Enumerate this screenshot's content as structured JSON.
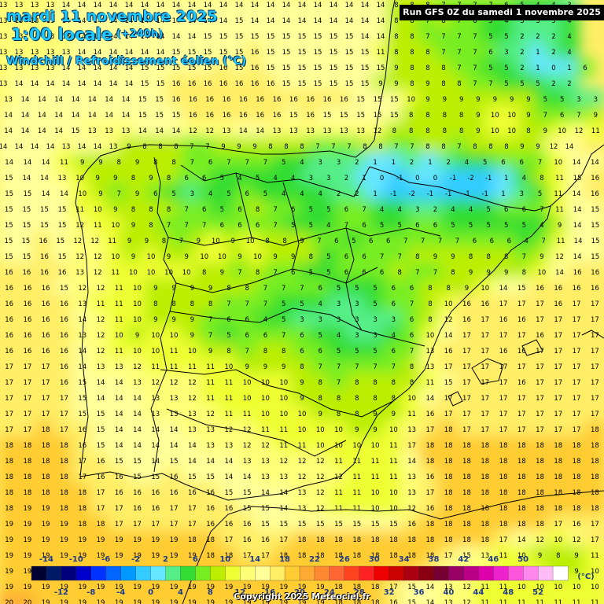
{
  "header": {
    "date_line": "mardi 11 novembre 2025",
    "time_line": "1:00 locale",
    "lead": "(+240h)",
    "param": "Windchill / Refroidissement éolien (°C)",
    "run": "Run GFS 0Z du samedi 1 novembre 2025"
  },
  "copyright": "Copyright 2025 Meteociel.fr",
  "legend": {
    "unit": "(°C)",
    "top_labels": [
      "-14",
      "-10",
      "-6",
      "-2",
      "2",
      "6",
      "10",
      "14",
      "18",
      "22",
      "26",
      "30",
      "34",
      "38",
      "42",
      "46",
      "50"
    ],
    "bottom_labels": [
      "-12",
      "-8",
      "-4",
      "0",
      "4",
      "8",
      "12",
      "16",
      "20",
      "24",
      "28",
      "32",
      "36",
      "40",
      "44",
      "48",
      "52"
    ],
    "colors": [
      "#000033",
      "#001a66",
      "#00007a",
      "#0000cc",
      "#0033ff",
      "#0066ff",
      "#0099ff",
      "#33ccff",
      "#66e6ff",
      "#55ee88",
      "#33dd33",
      "#77ee22",
      "#bbee00",
      "#eeff33",
      "#ffff77",
      "#ffff99",
      "#ffee66",
      "#ffcc33",
      "#ffaa33",
      "#ff8833",
      "#ff6633",
      "#ff4422",
      "#ff2222",
      "#ee0000",
      "#cc0000",
      "#aa0011",
      "#880011",
      "#770033",
      "#990066",
      "#bb0088",
      "#dd00aa",
      "#ee22cc",
      "#ff55dd",
      "#ff88ee",
      "#ffbbf5",
      "#ffffff"
    ]
  },
  "map_rows": [
    "13 13 13 13 14 14 14 14 14 14 14 14 14 14 14 14 14 14 14 14 14 14 14 14 14 8 8 8 7 7 7 7 6 5 4 4 3",
    "13 13 13 13 14 14 14 14 14 14 14 14 14 14 14 15 14 14 14 14 14 14 14 14 14 8 8 7 8 7 6 5 4 3 3 3 4",
    "13 13 13 13 13 14 14 14 14 14 14 14 14 15 15 15 15 15 15 15 15 15 15 14 14 8 8 7 7 7 7 5 5 2 2 2 4",
    "13 13 13 13 13 14 14 14 14 14 14 15 15 15 15 15 16 15 15 15 15 15 15 15 11 8 8 8 7 7 7 6 3 2 1 2 4",
    "13 13 13 13 14 14 14 14 14 15 15 15 15 15 16 15 16 15 15 15 15 15 15 15 15 9 8 8 8 7 7 5 5 2 1 0 1 6",
    "13 14 14 14 14 14 14 14 14 15 15 16 16 16 16 16 16 16 15 15 15 15 15 15 9 9 8 9 8 8 7 7 5 5 5 2 2",
    "13 14 14 14 14 14 14 14 15 15 16 16 16 16 16 16 16 16 16 16 16 15 15 15 10 9 9 9 9 9 9 9 5 5 3 3",
    "14 14 14 14 14 14 14 14 15 15 15 16 16 16 16 16 16 15 16 15 15 15 15 15 8 8 8 8 9 10 10 9 7 6 7 9",
    "14 14 14 14 15 13 13 13 14 14 14 12 12 13 14 14 13 13 13 13 13 13 12 8 8 8 8 8 9 10 10 8 9 10 12 11",
    "14 14 14 14 13 14 14 13 9 8 8 8 7 7 9 9 9 8 8 8 7 7 7 8 8 7 7 8 8 7 8 8 8 9 9 12 14",
    "14 14 14 11 9 9 8 9 8 8 7 6 7 7 7 5 4 3 3 2 1 1 2 1 2 4 5 6 6 7 10 14 14",
    "15 14 14 13 10 9 9 8 9 8 6 6 5 4 5 4 4 3 3 2 1 0 -1 0 0 -1 -2 -1 1 4 8 11 15 16",
    "15 15 14 14 10 9 7 9 6 5 3 4 5 6 5 4 4 4 2 2 1 -1 -2 -1 -1 -1 -1 1 3 5 11 14 16",
    "15 15 15 15 11 10 9 8 8 8 7 6 5 6 8 7 6 5 5 6 7 4 4 3 2 4 4 5 6 6 7 11 14 15",
    "15 15 15 15 12 11 10 9 8 7 7 7 6 6 6 7 5 5 4 7 6 5 5 6 6 5 5 5 5 5 4 9 14 15",
    "15 15 16 15 12 12 11 9 9 8 7 9 10 9 10 8 8 9 7 6 5 6 6 7 7 7 7 6 6 6 4 7 11 14 15",
    "15 15 16 15 12 12 10 9 10 9 9 10 10 9 10 9 9 8 5 6 6 7 7 8 9 9 8 8 8 7 9 12 14 15",
    "16 16 16 16 13 12 11 10 10 10 10 8 9 7 8 7 6 5 5 6 6 6 8 7 7 8 9 9 9 8 10 14 16 16",
    "16 16 16 15 12 12 11 10 9 9 9 9 8 8 7 7 7 6 5 5 5 6 6 8 8 9 10 14 15 16 16 16 16",
    "16 16 16 16 13 11 11 10 8 8 8 8 7 7 7 5 5 4 3 3 5 6 7 8 10 16 16 17 17 17 16 17 17",
    "16 16 16 16 14 12 11 10 9 9 9 7 6 6 4 5 3 3 3 3 3 3 6 8 12 16 17 16 16 17 17 17 17",
    "16 16 16 16 13 12 10 9 10 10 9 7 5 6 6 7 6 5 4 3 3 4 6 10 14 17 17 17 17 16 17 17 17",
    "16 16 16 16 14 12 11 10 10 11 10 9 8 7 8 8 6 6 5 5 5 6 7 13 16 17 17 16 16 17 17 17 17",
    "17 17 17 16 14 13 13 12 11 11 11 11 10 9 9 9 8 7 7 7 7 7 8 13 17 17 17 17 17 17 17 17 17",
    "17 17 17 16 15 14 14 13 12 12 12 11 11 10 10 10 9 8 7 8 8 8 8 11 15 17 17 17 16 17 17 17 17",
    "17 17 17 17 15 14 14 14 13 13 12 11 11 10 10 10 9 8 8 8 8 8 10 14 17 17 17 17 17 17 17 17 17",
    "17 17 17 17 15 15 14 14 13 13 13 12 11 11 10 10 10 9 8 8 9 9 11 16 17 17 17 17 17 17 17 17 17",
    "17 17 18 17 16 15 14 14 14 14 13 13 12 12 11 11 10 10 10 9 9 10 13 17 18 17 17 17 17 17 17 17 18",
    "18 18 18 18 16 15 14 14 14 14 14 13 13 12 12 11 11 10 10 10 10 11 17 18 18 18 18 18 18 18 18 18 18",
    "18 18 18 18 17 16 15 15 14 15 14 14 14 13 13 12 12 12 11 11 11 11 14 18 18 18 18 18 18 18 18 18 18",
    "18 18 18 18 17 16 16 15 15 16 15 15 14 14 13 13 12 12 12 11 11 11 13 16 18 18 18 18 18 18 18 18 18",
    "18 18 18 18 18 17 16 16 16 16 16 16 15 15 14 14 13 12 11 11 10 10 13 17 18 18 18 18 18 18 18 18 18",
    "18 19 19 18 18 17 17 16 16 17 17 16 16 15 15 14 13 12 11 11 10 10 12 16 18 18 18 18 18 18 18 18 18",
    "19 19 19 19 18 18 17 17 17 17 17 16 16 16 15 15 15 15 15 15 15 15 16 18 18 18 18 18 18 18 17 16 17",
    "19 19 19 19 19 19 19 19 19 19 18 18 17 16 16 17 18 18 18 18 18 18 18 18 18 18 18 17 14 12 10 12 17",
    "19 19 19 19 19 19 19 19 19 19 19 18 18 17 17 18 18 18 18 18 18 18 18 18 17 15 13 11 10 9 8 9 11",
    "19 19 19 19 19 19 19 19 19 19 19 19 19 18 18 18 19 18 18 18 18 18 18 16 14 13 12 11 10 10 9 9 10",
    "19 19 19 19 19 19 19 19 19 19 19 19 19 19 19 19 19 19 18 18 18 17 15 14 13 12 11 11 10 10 10 10 10",
    "20 20 19 19 19 19 19 19 19 19 19 19 19 19 19 19 19 19 18 18 18 16 15 14 13 12 11 11 11 11 11 11 11"
  ]
}
